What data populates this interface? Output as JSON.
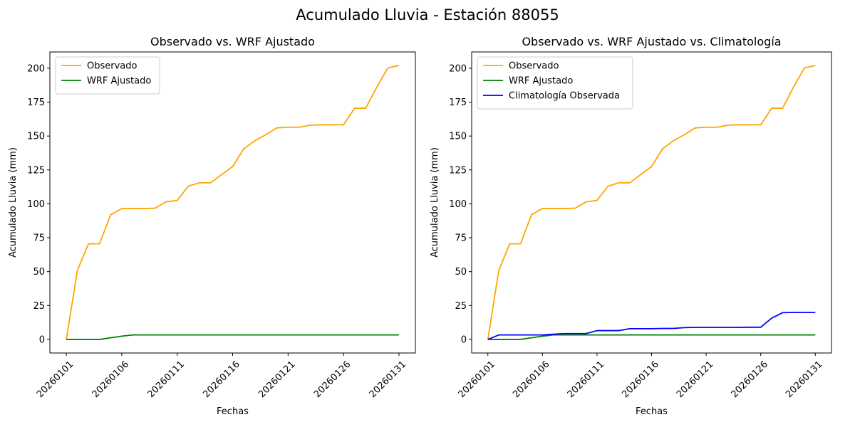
{
  "suptitle": "Acumulado Lluvia - Estación 88055",
  "colors": {
    "Observado": "#ffa500",
    "WRF Ajustado": "#008000",
    "Climatología Observada": "#0000ff"
  },
  "chart_data": [
    {
      "type": "line",
      "title": "Observado vs. WRF Ajustado",
      "xlabel": "Fechas",
      "ylabel": "Acumulado Lluvia (mm)",
      "ylim": [
        -10,
        212
      ],
      "yticks": [
        0,
        25,
        50,
        75,
        100,
        125,
        150,
        175,
        200
      ],
      "xticks": [
        "20260101",
        "20260106",
        "20260111",
        "20260116",
        "20260121",
        "20260126",
        "20260131"
      ],
      "legend": "top-left",
      "grid": false,
      "x": [
        "20260101",
        "20260102",
        "20260103",
        "20260104",
        "20260105",
        "20260106",
        "20260107",
        "20260108",
        "20260109",
        "20260110",
        "20260111",
        "20260112",
        "20260113",
        "20260114",
        "20260115",
        "20260116",
        "20260117",
        "20260118",
        "20260119",
        "20260120",
        "20260121",
        "20260122",
        "20260123",
        "20260124",
        "20260125",
        "20260126",
        "20260127",
        "20260128",
        "20260129",
        "20260130",
        "20260131"
      ],
      "series": [
        {
          "name": "Observado",
          "values": [
            0,
            51,
            70.5,
            70.5,
            92,
            96.5,
            96.5,
            96.5,
            96.8,
            101.5,
            102.5,
            113,
            115.5,
            115.5,
            121.5,
            127.5,
            140.5,
            146.5,
            151,
            156,
            156.5,
            156.5,
            158,
            158.3,
            158.3,
            158.3,
            170.5,
            170.5,
            186,
            200.2,
            202
          ]
        },
        {
          "name": "WRF Ajustado",
          "values": [
            0,
            0,
            0,
            0,
            1.2,
            2.4,
            3.3,
            3.3,
            3.3,
            3.3,
            3.3,
            3.3,
            3.3,
            3.3,
            3.3,
            3.3,
            3.3,
            3.3,
            3.3,
            3.3,
            3.3,
            3.3,
            3.3,
            3.3,
            3.3,
            3.3,
            3.3,
            3.3,
            3.3,
            3.3,
            3.3
          ]
        }
      ]
    },
    {
      "type": "line",
      "title": "Observado vs. WRF Ajustado vs. Climatología",
      "xlabel": "Fechas",
      "ylabel": "Acumulado Lluvia (mm)",
      "ylim": [
        -10,
        212
      ],
      "yticks": [
        0,
        25,
        50,
        75,
        100,
        125,
        150,
        175,
        200
      ],
      "xticks": [
        "20260101",
        "20260106",
        "20260111",
        "20260116",
        "20260121",
        "20260126",
        "20260131"
      ],
      "legend": "top-left",
      "grid": false,
      "x": [
        "20260101",
        "20260102",
        "20260103",
        "20260104",
        "20260105",
        "20260106",
        "20260107",
        "20260108",
        "20260109",
        "20260110",
        "20260111",
        "20260112",
        "20260113",
        "20260114",
        "20260115",
        "20260116",
        "20260117",
        "20260118",
        "20260119",
        "20260120",
        "20260121",
        "20260122",
        "20260123",
        "20260124",
        "20260125",
        "20260126",
        "20260127",
        "20260128",
        "20260129",
        "20260130",
        "20260131"
      ],
      "series": [
        {
          "name": "Observado",
          "values": [
            0,
            51,
            70.5,
            70.5,
            92,
            96.5,
            96.5,
            96.5,
            96.8,
            101.5,
            102.5,
            113,
            115.5,
            115.5,
            121.5,
            127.5,
            140.5,
            146.5,
            151,
            156,
            156.5,
            156.5,
            158,
            158.3,
            158.3,
            158.3,
            170.5,
            170.5,
            186,
            200.2,
            202
          ]
        },
        {
          "name": "WRF Ajustado",
          "values": [
            0,
            0,
            0,
            0,
            1.2,
            2.4,
            3.3,
            3.3,
            3.3,
            3.3,
            3.3,
            3.3,
            3.3,
            3.3,
            3.3,
            3.3,
            3.3,
            3.3,
            3.3,
            3.3,
            3.3,
            3.3,
            3.3,
            3.3,
            3.3,
            3.3,
            3.3,
            3.3,
            3.3,
            3.3,
            3.3
          ]
        },
        {
          "name": "Climatología Observada",
          "values": [
            0,
            3.3,
            3.3,
            3.3,
            3.3,
            3.3,
            3.8,
            4.3,
            4.3,
            4.3,
            6.5,
            6.5,
            6.5,
            7.9,
            7.9,
            7.9,
            8.1,
            8.1,
            8.7,
            8.9,
            8.9,
            8.9,
            8.9,
            8.9,
            9,
            9,
            15.7,
            19.7,
            19.9,
            19.9,
            19.9
          ]
        }
      ]
    }
  ]
}
